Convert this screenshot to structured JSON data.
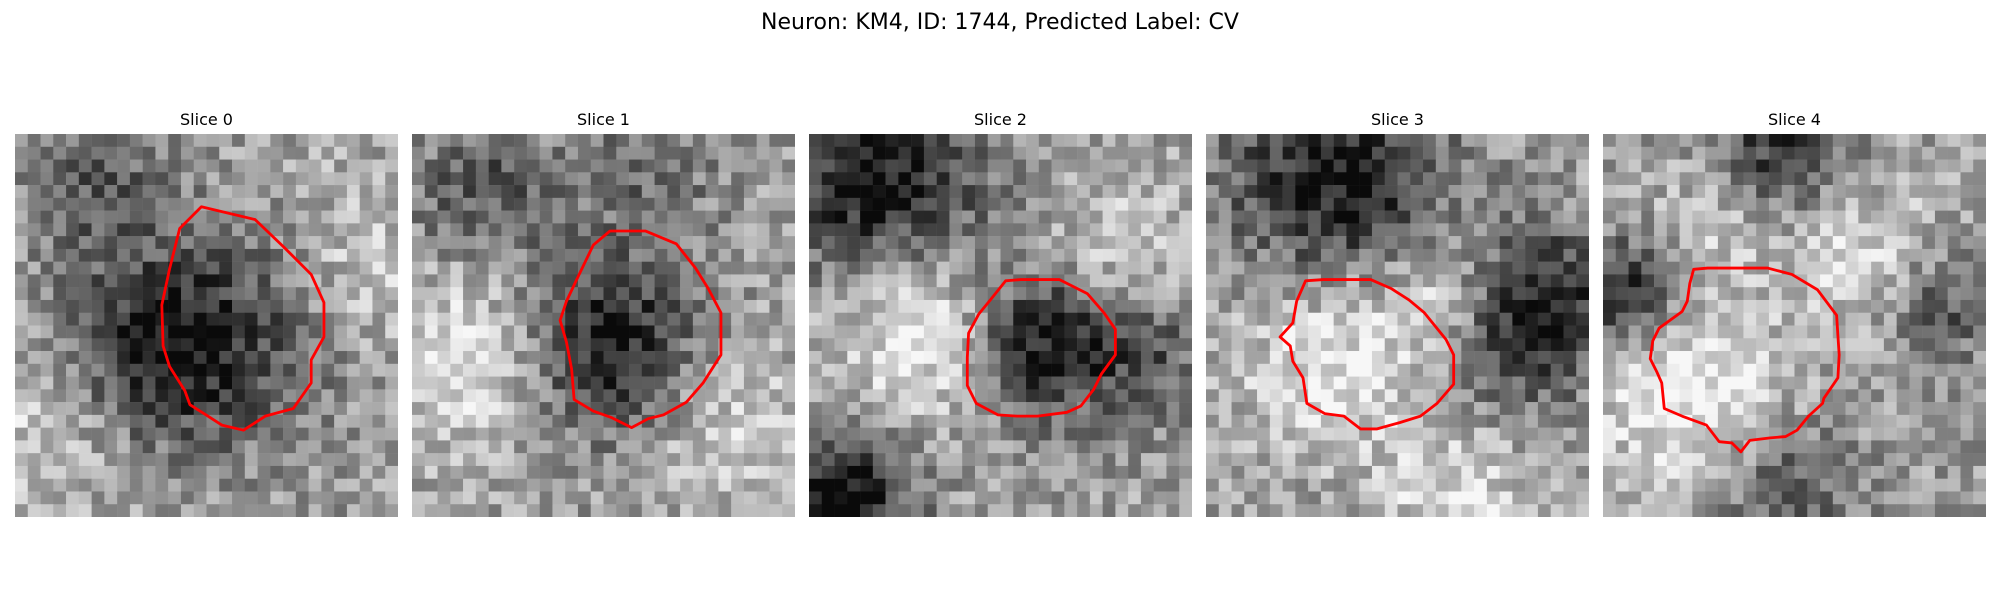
{
  "title": "Neuron: KM4, ID: 1744, Predicted Label: CV",
  "contour_color": "#ff0000",
  "colormap": "gray",
  "slices": [
    {
      "label": "Slice 0"
    },
    {
      "label": "Slice 1"
    },
    {
      "label": "Slice 2"
    },
    {
      "label": "Slice 3"
    },
    {
      "label": "Slice 4"
    }
  ]
}
